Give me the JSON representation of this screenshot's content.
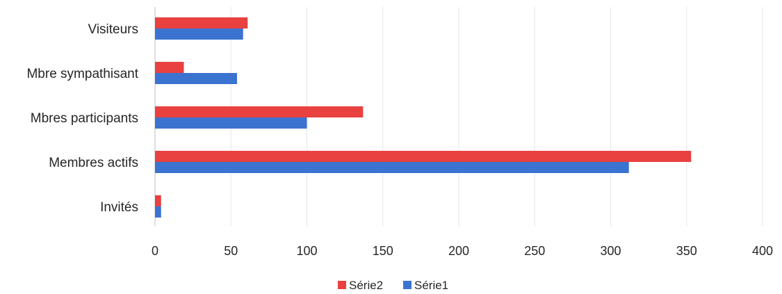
{
  "chart_data": {
    "type": "bar",
    "orientation": "horizontal",
    "categories": [
      "Visiteurs",
      "Mbre sympathisant",
      "Mbres participants",
      "Membres actifs",
      "Invités"
    ],
    "series": [
      {
        "name": "Série2",
        "color": "#e8413f",
        "values": [
          61,
          19,
          137,
          353,
          4
        ]
      },
      {
        "name": "Série1",
        "color": "#3b73d1",
        "values": [
          58,
          54,
          100,
          312,
          4
        ]
      }
    ],
    "xticks": [
      "0",
      "50",
      "100",
      "150",
      "200",
      "250",
      "300",
      "350",
      "400"
    ],
    "xlim": [
      0,
      400
    ],
    "grid": true,
    "legend": "bottom"
  }
}
